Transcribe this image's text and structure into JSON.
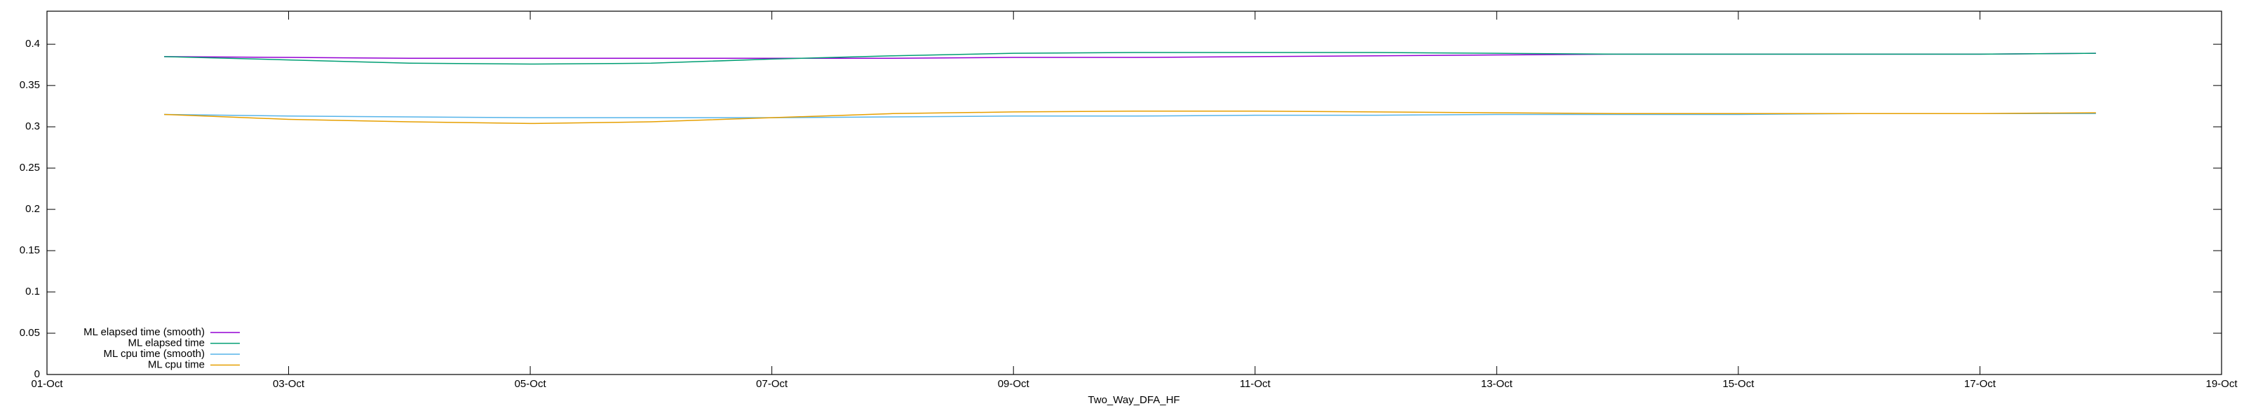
{
  "chart_data": {
    "type": "line",
    "xlabel": "Two_Way_DFA_HF",
    "x": [
      1.97,
      3,
      4,
      5,
      6,
      7,
      8,
      9,
      10,
      11,
      12,
      13,
      14,
      15,
      16,
      17,
      17.96
    ],
    "series": [
      {
        "name": "ML elapsed time (smooth)",
        "color": "#9400d3",
        "values": [
          0.385,
          0.384,
          0.383,
          0.383,
          0.383,
          0.383,
          0.383,
          0.384,
          0.384,
          0.385,
          0.386,
          0.387,
          0.388,
          0.388,
          0.388,
          0.388,
          0.389
        ]
      },
      {
        "name": "ML elapsed time",
        "color": "#009e73",
        "values": [
          0.385,
          0.381,
          0.377,
          0.376,
          0.377,
          0.382,
          0.386,
          0.389,
          0.39,
          0.39,
          0.39,
          0.389,
          0.388,
          0.388,
          0.388,
          0.388,
          0.389
        ]
      },
      {
        "name": "ML cpu time (smooth)",
        "color": "#56b4e9",
        "values": [
          0.315,
          0.313,
          0.312,
          0.311,
          0.311,
          0.311,
          0.312,
          0.313,
          0.313,
          0.314,
          0.314,
          0.315,
          0.315,
          0.315,
          0.316,
          0.316,
          0.316
        ]
      },
      {
        "name": "ML cpu time",
        "color": "#e69f00",
        "values": [
          0.315,
          0.309,
          0.306,
          0.304,
          0.306,
          0.311,
          0.316,
          0.318,
          0.319,
          0.319,
          0.318,
          0.317,
          0.316,
          0.316,
          0.316,
          0.316,
          0.317
        ]
      }
    ],
    "xlim": [
      1,
      19
    ],
    "xticks": [
      {
        "value": 1,
        "label": "01-Oct"
      },
      {
        "value": 3,
        "label": "03-Oct"
      },
      {
        "value": 5,
        "label": "05-Oct"
      },
      {
        "value": 7,
        "label": "07-Oct"
      },
      {
        "value": 9,
        "label": "09-Oct"
      },
      {
        "value": 11,
        "label": "11-Oct"
      },
      {
        "value": 13,
        "label": "13-Oct"
      },
      {
        "value": 15,
        "label": "15-Oct"
      },
      {
        "value": 17,
        "label": "17-Oct"
      },
      {
        "value": 19,
        "label": "19-Oct"
      }
    ],
    "ylim": [
      0,
      0.44
    ],
    "yticks": [
      0,
      0.05,
      0.1,
      0.15,
      0.2,
      0.25,
      0.3,
      0.35,
      0.4
    ],
    "legend": "lower-left"
  }
}
